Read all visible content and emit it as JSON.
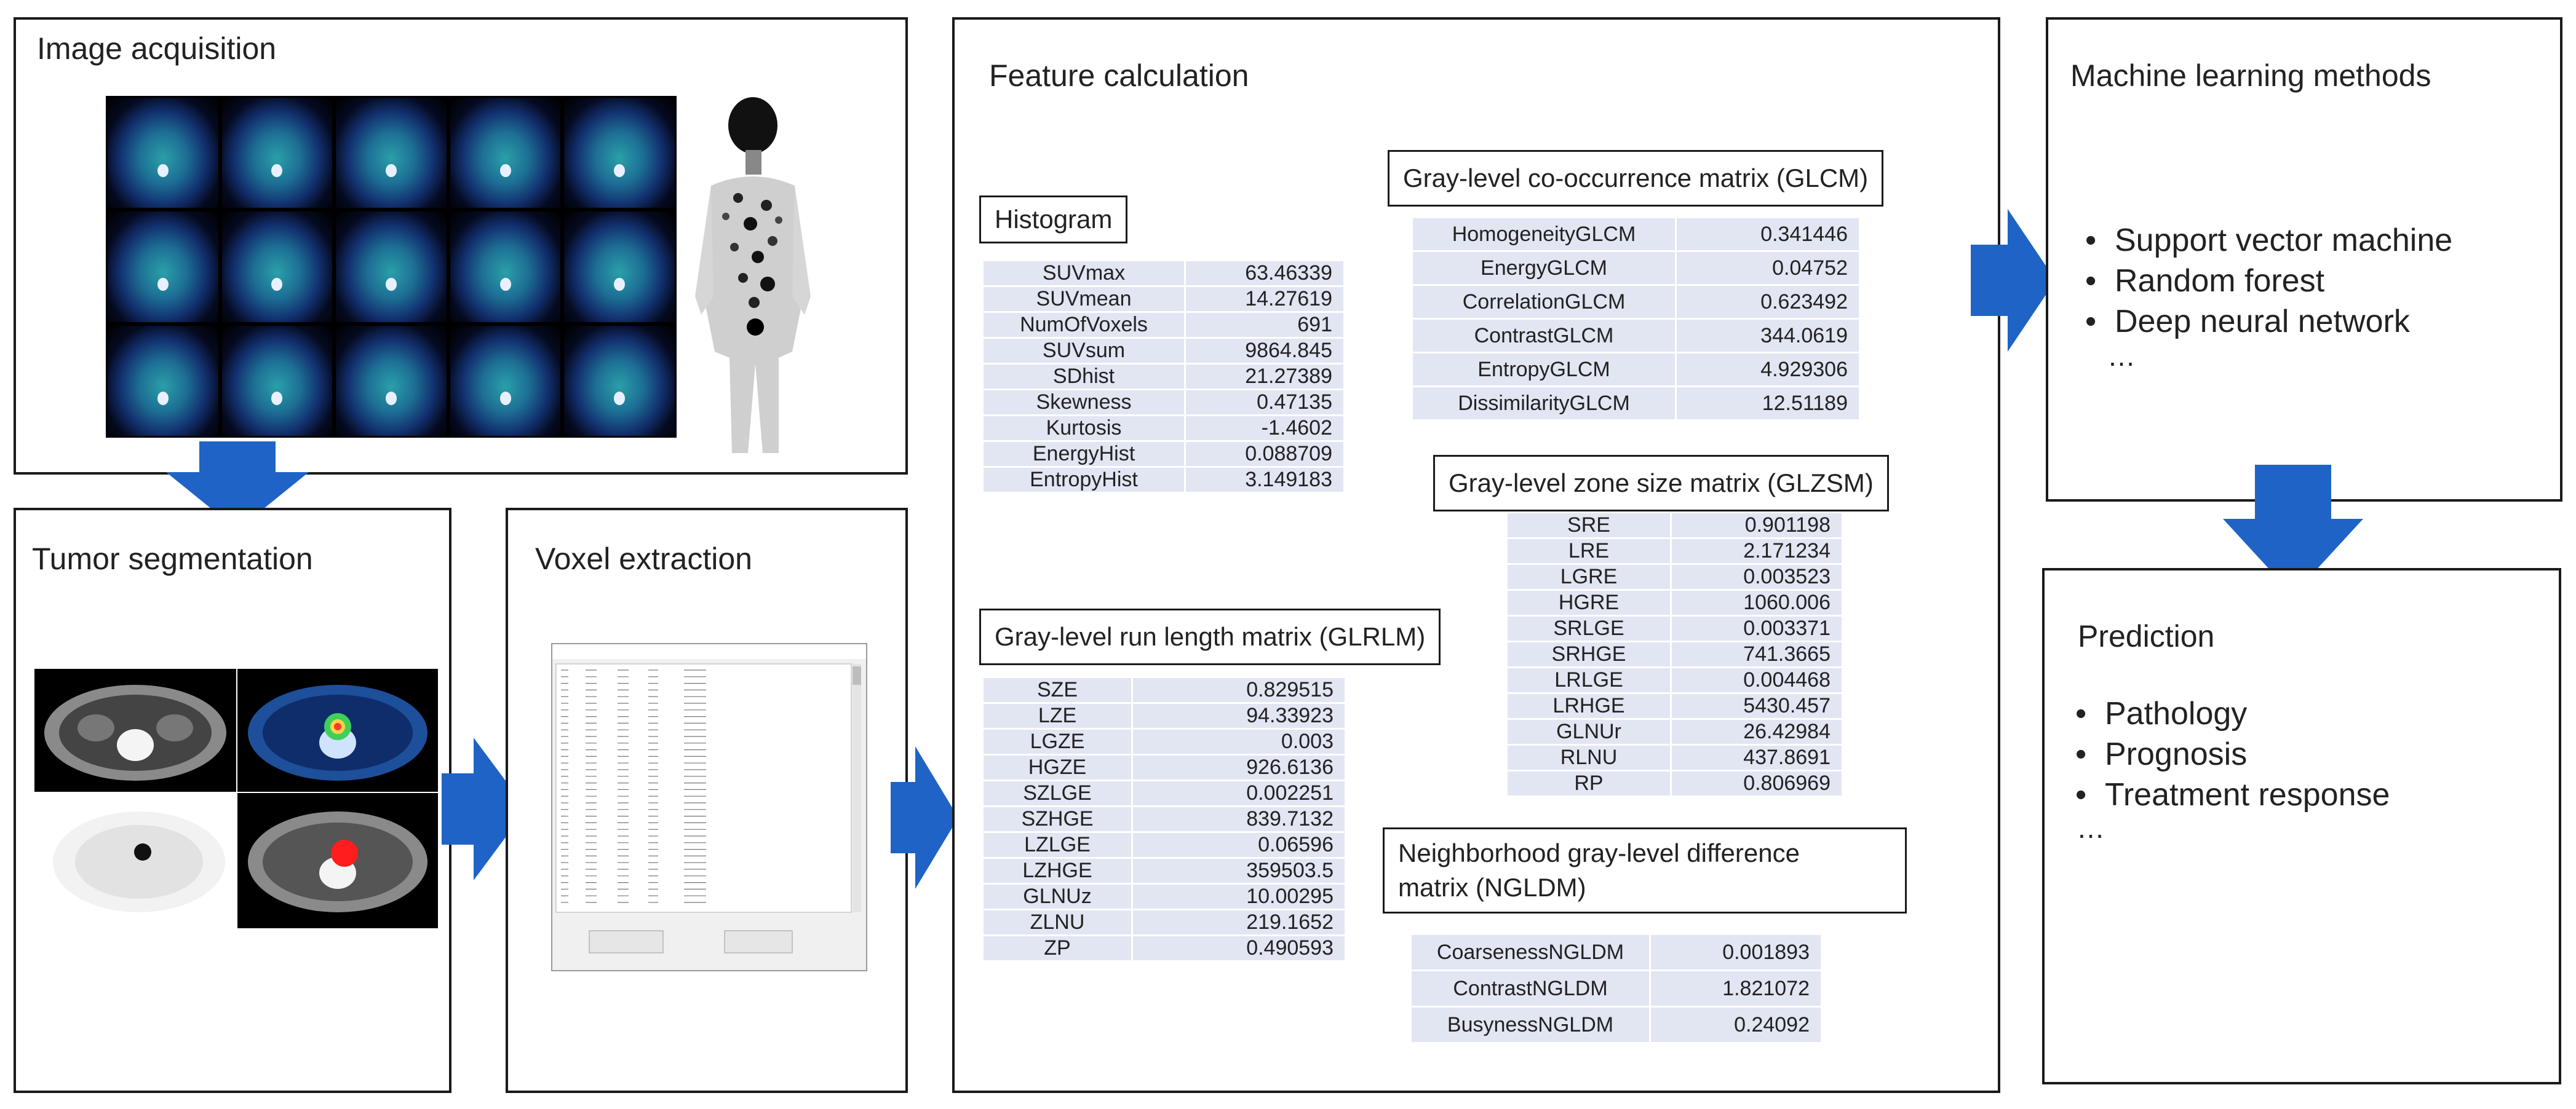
{
  "panels": {
    "image_acquisition": "Image acquisition",
    "tumor_segmentation": "Tumor segmentation",
    "voxel_extraction": "Voxel extraction",
    "feature_calculation": "Feature calculation",
    "machine_learning": "Machine learning methods",
    "prediction": "Prediction"
  },
  "histogram": {
    "title": "Histogram",
    "rows": [
      {
        "name": "SUVmax",
        "value": "63.46339"
      },
      {
        "name": "SUVmean",
        "value": "14.27619"
      },
      {
        "name": "NumOfVoxels",
        "value": "691"
      },
      {
        "name": "SUVsum",
        "value": "9864.845"
      },
      {
        "name": "SDhist",
        "value": "21.27389"
      },
      {
        "name": "Skewness",
        "value": "0.47135"
      },
      {
        "name": "Kurtosis",
        "value": "-1.4602"
      },
      {
        "name": "EnergyHist",
        "value": "0.088709"
      },
      {
        "name": "EntropyHist",
        "value": "3.149183"
      }
    ]
  },
  "glcm": {
    "title": "Gray-level co-occurrence matrix (GLCM)",
    "rows": [
      {
        "name": "HomogeneityGLCM",
        "value": "0.341446"
      },
      {
        "name": "EnergyGLCM",
        "value": "0.04752"
      },
      {
        "name": "CorrelationGLCM",
        "value": "0.623492"
      },
      {
        "name": "ContrastGLCM",
        "value": "344.0619"
      },
      {
        "name": "EntropyGLCM",
        "value": "4.929306"
      },
      {
        "name": "DissimilarityGLCM",
        "value": "12.51189"
      }
    ]
  },
  "glzsm": {
    "title": "Gray-level zone size matrix (GLZSM)",
    "rows": [
      {
        "name": "SRE",
        "value": "0.901198"
      },
      {
        "name": "LRE",
        "value": "2.171234"
      },
      {
        "name": "LGRE",
        "value": "0.003523"
      },
      {
        "name": "HGRE",
        "value": "1060.006"
      },
      {
        "name": "SRLGE",
        "value": "0.003371"
      },
      {
        "name": "SRHGE",
        "value": "741.3665"
      },
      {
        "name": "LRLGE",
        "value": "0.004468"
      },
      {
        "name": "LRHGE",
        "value": "5430.457"
      },
      {
        "name": "GLNUr",
        "value": "26.42984"
      },
      {
        "name": "RLNU",
        "value": "437.8691"
      },
      {
        "name": "RP",
        "value": "0.806969"
      }
    ]
  },
  "glrlm": {
    "title": "Gray-level run length matrix (GLRLM)",
    "rows": [
      {
        "name": "SZE",
        "value": "0.829515"
      },
      {
        "name": "LZE",
        "value": "94.33923"
      },
      {
        "name": "LGZE",
        "value": "0.003"
      },
      {
        "name": "HGZE",
        "value": "926.6136"
      },
      {
        "name": "SZLGE",
        "value": "0.002251"
      },
      {
        "name": "SZHGE",
        "value": "839.7132"
      },
      {
        "name": "LZLGE",
        "value": "0.06596"
      },
      {
        "name": "LZHGE",
        "value": "359503.5"
      },
      {
        "name": "GLNUz",
        "value": "10.00295"
      },
      {
        "name": "ZLNU",
        "value": "219.1652"
      },
      {
        "name": "ZP",
        "value": "0.490593"
      }
    ]
  },
  "ngldm": {
    "title_line1": "Neighborhood gray-level difference",
    "title_line2": "matrix (NGLDM)",
    "rows": [
      {
        "name": "CoarsenessNGLDM",
        "value": "0.001893"
      },
      {
        "name": "ContrastNGLDM",
        "value": "1.821072"
      },
      {
        "name": "BusynessNGLDM",
        "value": "0.24092"
      }
    ]
  },
  "ml_methods": [
    "Support vector machine",
    "Random forest",
    "Deep neural network"
  ],
  "ml_ellipsis": "…",
  "predictions": [
    "Pathology",
    "Prognosis",
    "Treatment response"
  ],
  "prediction_ellipsis": "…",
  "colors": {
    "arrow": "#1f63c6",
    "cell": "#e2e5f2",
    "border": "#1a1a1a"
  }
}
